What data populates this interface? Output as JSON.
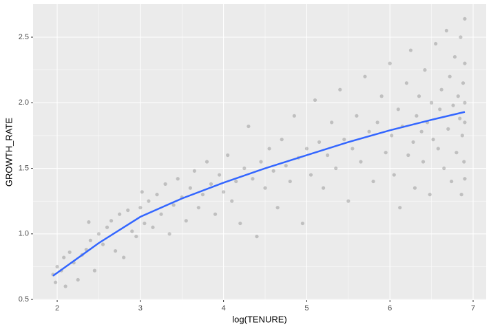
{
  "chart_data": {
    "type": "scatter",
    "xlabel": "log(TENURE)",
    "ylabel": "GROWTH_RATE",
    "xlim": [
      1.71,
      7.157
    ],
    "ylim": [
      0.495,
      2.752
    ],
    "xticks": [
      2,
      3,
      4,
      5,
      6,
      7
    ],
    "yticks": [
      {
        "value": 0.5,
        "label": "0.5"
      },
      {
        "value": 1,
        "label": "1.0"
      },
      {
        "value": 1.5,
        "label": "1.5"
      },
      {
        "value": 2,
        "label": "2.0"
      },
      {
        "value": 2.5,
        "label": "2.5"
      }
    ],
    "x_minor_grid": [
      2.5,
      3.5,
      4.5,
      5.5,
      6.5
    ],
    "y_minor_grid": [
      0.75,
      1.25,
      1.75,
      2.25
    ],
    "grid": true,
    "panel_color": "#ebebeb",
    "color": "#595959",
    "x": [
      1.95,
      1.98,
      2.0,
      2.05,
      2.08,
      2.1,
      2.15,
      2.2,
      2.25,
      2.3,
      2.35,
      2.38,
      2.4,
      2.45,
      2.5,
      2.55,
      2.6,
      2.65,
      2.7,
      2.75,
      2.8,
      2.85,
      2.9,
      2.95,
      3.0,
      3.02,
      3.05,
      3.1,
      3.15,
      3.2,
      3.25,
      3.3,
      3.35,
      3.4,
      3.45,
      3.5,
      3.55,
      3.6,
      3.65,
      3.7,
      3.75,
      3.8,
      3.85,
      3.9,
      3.95,
      4.0,
      4.05,
      4.1,
      4.15,
      4.2,
      4.25,
      4.3,
      4.35,
      4.4,
      4.45,
      4.5,
      4.55,
      4.6,
      4.65,
      4.7,
      4.75,
      4.8,
      4.85,
      4.9,
      4.95,
      5.0,
      5.05,
      5.1,
      5.15,
      5.2,
      5.25,
      5.3,
      5.35,
      5.4,
      5.45,
      5.5,
      5.55,
      5.6,
      5.65,
      5.7,
      5.75,
      5.8,
      5.85,
      5.9,
      5.95,
      6.0,
      6.02,
      6.05,
      6.1,
      6.12,
      6.15,
      6.2,
      6.22,
      6.25,
      6.28,
      6.3,
      6.32,
      6.35,
      6.38,
      6.4,
      6.42,
      6.45,
      6.48,
      6.5,
      6.52,
      6.55,
      6.58,
      6.6,
      6.62,
      6.65,
      6.68,
      6.7,
      6.72,
      6.74,
      6.76,
      6.78,
      6.8,
      6.82,
      6.84,
      6.85,
      6.86,
      6.87,
      6.88,
      6.89,
      6.9,
      6.9,
      6.9,
      6.9,
      6.9
    ],
    "y": [
      0.69,
      0.63,
      0.75,
      0.72,
      0.82,
      0.6,
      0.86,
      0.78,
      0.65,
      0.84,
      0.88,
      1.09,
      0.95,
      0.72,
      1.0,
      0.92,
      1.05,
      1.1,
      0.87,
      1.15,
      0.82,
      1.18,
      1.02,
      0.98,
      1.2,
      1.32,
      1.08,
      1.25,
      1.05,
      1.3,
      1.15,
      1.38,
      1.0,
      1.22,
      1.42,
      1.28,
      1.1,
      1.35,
      1.48,
      1.2,
      1.3,
      1.55,
      1.38,
      1.15,
      1.45,
      1.32,
      1.6,
      1.25,
      1.4,
      1.08,
      1.5,
      1.82,
      1.42,
      0.98,
      1.55,
      1.35,
      1.65,
      1.48,
      1.2,
      1.72,
      1.52,
      1.4,
      1.9,
      1.58,
      1.08,
      1.65,
      1.45,
      2.02,
      1.7,
      1.35,
      1.6,
      1.85,
      1.5,
      2.1,
      1.72,
      1.25,
      1.65,
      1.9,
      1.55,
      2.2,
      1.78,
      1.4,
      1.85,
      2.05,
      1.62,
      2.3,
      1.75,
      1.45,
      1.95,
      1.2,
      1.82,
      2.15,
      1.6,
      2.4,
      1.7,
      1.35,
      1.9,
      2.05,
      1.78,
      1.55,
      2.25,
      1.85,
      1.3,
      2.0,
      1.72,
      2.45,
      1.65,
      1.95,
      2.1,
      1.5,
      2.55,
      1.8,
      2.2,
      1.4,
      1.98,
      2.35,
      1.62,
      2.05,
      1.88,
      2.5,
      1.3,
      1.75,
      2.15,
      1.55,
      2.0,
      2.64,
      1.42,
      1.85,
      2.3
    ],
    "smooth": {
      "color": "#3366ff",
      "x": [
        1.95,
        2.5,
        3,
        3.5,
        4,
        4.5,
        5,
        5.5,
        6,
        6.5,
        6.9
      ],
      "y": [
        0.68,
        0.93,
        1.13,
        1.27,
        1.39,
        1.5,
        1.6,
        1.7,
        1.79,
        1.87,
        1.93
      ]
    }
  }
}
